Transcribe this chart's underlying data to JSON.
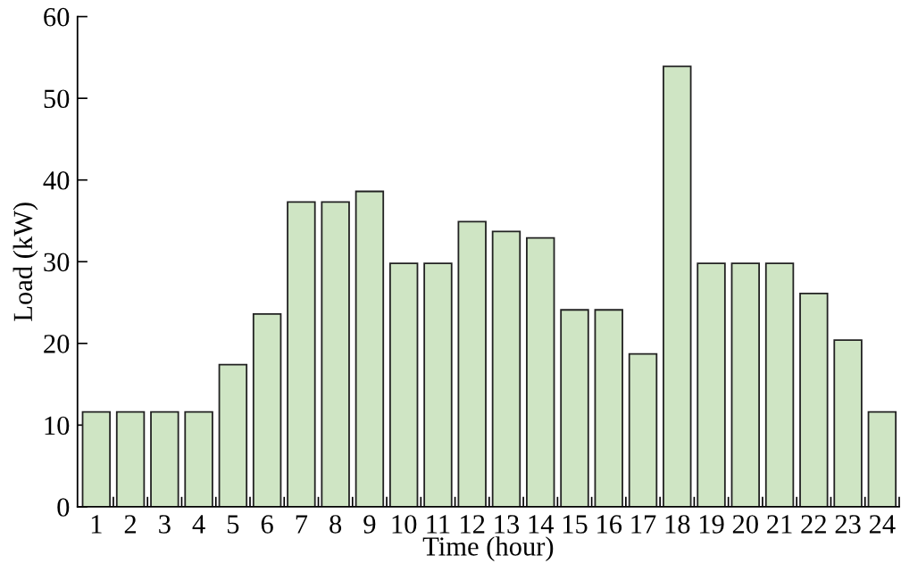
{
  "chart_data": {
    "type": "bar",
    "xlabel": "Time (hour)",
    "ylabel": "Load (kW)",
    "categories": [
      "1",
      "2",
      "3",
      "4",
      "5",
      "6",
      "7",
      "8",
      "9",
      "10",
      "11",
      "12",
      "13",
      "14",
      "15",
      "16",
      "17",
      "18",
      "19",
      "20",
      "21",
      "22",
      "23",
      "24"
    ],
    "values": [
      11.6,
      11.6,
      11.6,
      11.6,
      17.4,
      23.6,
      37.3,
      37.3,
      38.6,
      29.8,
      29.8,
      34.9,
      33.7,
      32.9,
      24.1,
      24.1,
      18.7,
      53.9,
      29.8,
      29.8,
      29.8,
      26.1,
      20.4,
      11.6
    ],
    "color": "#cfe5c4",
    "ylim": [
      0,
      60
    ],
    "yticks": [
      0,
      10,
      20,
      30,
      40,
      50,
      60
    ],
    "grid": false,
    "legend": false
  }
}
